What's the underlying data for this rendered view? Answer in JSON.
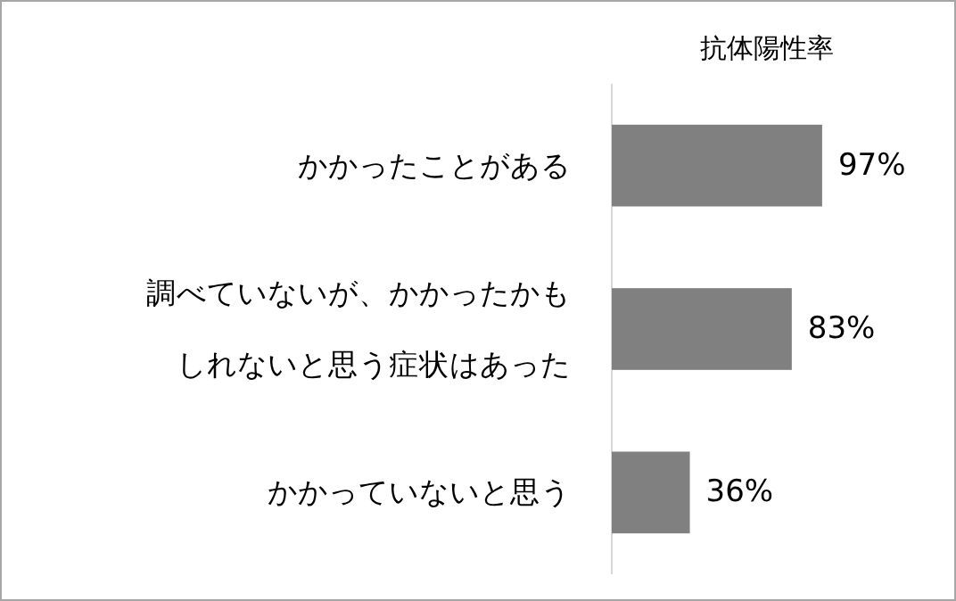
{
  "chart_data": {
    "type": "bar",
    "orientation": "horizontal",
    "title": "抗体陽性率",
    "categories": [
      "かかったことがある",
      "調べていないが、かかったかもしれないと思う症状はあった",
      "かかっていないと思う"
    ],
    "values": [
      97,
      83,
      36
    ],
    "color": "#808080",
    "xlim": [
      0,
      100
    ],
    "tick_labels": "y",
    "value_labels": [
      "97%",
      "83%",
      "36%"
    ]
  }
}
